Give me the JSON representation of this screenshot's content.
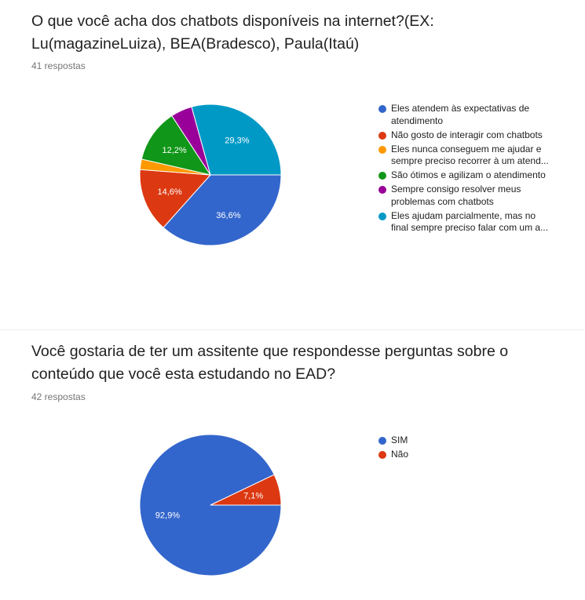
{
  "questions": [
    {
      "title": "O que você acha dos chatbots disponíveis na internet?(EX: Lu(magazineLuiza), BEA(Bradesco), Paula(Itaú)",
      "responses": "41 respostas",
      "legend": [
        {
          "line1": "Eles atendem às expectativas de",
          "line2": "atendimento",
          "color": "#3366cc"
        },
        {
          "line1": "Não gosto de interagir com chatbots",
          "line2": "",
          "color": "#dc3912"
        },
        {
          "line1": "Eles nunca conseguem me ajudar e",
          "line2": "sempre preciso recorrer à um atend...",
          "color": "#ff9900"
        },
        {
          "line1": "São ótimos e agilizam o atendimento",
          "line2": "",
          "color": "#109618"
        },
        {
          "line1": "Sempre consigo resolver meus",
          "line2": "problemas com chatbots",
          "color": "#990099"
        },
        {
          "line1": "Eles ajudam parcialmente, mas no",
          "line2": "final sempre preciso falar com um a...",
          "color": "#0099c6"
        }
      ]
    },
    {
      "title": "Você gostaria de ter um assitente que respondesse perguntas sobre o conteúdo que você esta estudando no EAD?",
      "responses": "42 respostas",
      "legend": [
        {
          "line1": "SIM",
          "line2": "",
          "color": "#3366cc"
        },
        {
          "line1": "Não",
          "line2": "",
          "color": "#dc3912"
        }
      ]
    }
  ],
  "chart_data": [
    {
      "type": "pie",
      "categories": [
        "Eles atendem às expectativas de atendimento",
        "Não gosto de interagir com chatbots",
        "Eles nunca conseguem me ajudar e sempre preciso recorrer à um atend...",
        "São ótimos e agilizam o atendimento",
        "Sempre consigo resolver meus problemas com chatbots",
        "Eles ajudam parcialmente, mas no final sempre preciso falar com um a..."
      ],
      "values": [
        36.6,
        14.6,
        2.4,
        12.2,
        4.9,
        29.3
      ],
      "labels": [
        "36,6%",
        "14,6%",
        "",
        "12,2%",
        "",
        "29,3%"
      ],
      "colors": [
        "#3366cc",
        "#dc3912",
        "#ff9900",
        "#109618",
        "#990099",
        "#0099c6"
      ],
      "legend_position": "right"
    },
    {
      "type": "pie",
      "categories": [
        "SIM",
        "Não"
      ],
      "values": [
        92.9,
        7.1
      ],
      "labels": [
        "92,9%",
        "7,1%"
      ],
      "colors": [
        "#3366cc",
        "#dc3912"
      ],
      "legend_position": "right"
    }
  ]
}
